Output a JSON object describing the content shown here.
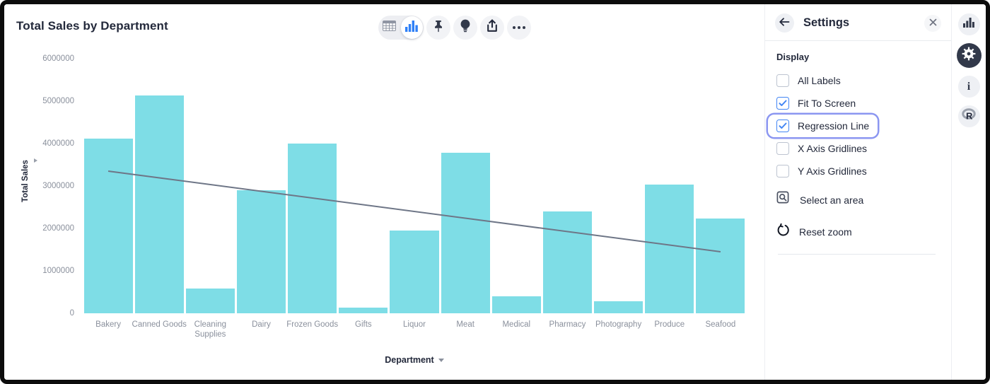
{
  "chart_data": {
    "type": "bar",
    "title": "Total Sales by Department",
    "xlabel": "Department",
    "ylabel": "Total Sales",
    "categories": [
      "Bakery",
      "Canned Goods",
      "Cleaning Supplies",
      "Dairy",
      "Frozen Goods",
      "Gifts",
      "Liquor",
      "Meat",
      "Medical",
      "Pharmacy",
      "Photography",
      "Produce",
      "Seafood"
    ],
    "values": [
      4110000,
      5140000,
      580000,
      2900000,
      4000000,
      140000,
      1950000,
      3780000,
      400000,
      2400000,
      280000,
      3030000,
      2230000
    ],
    "ylim": [
      0,
      6000000
    ],
    "y_ticks": [
      0,
      1000000,
      2000000,
      3000000,
      4000000,
      5000000,
      6000000
    ],
    "grid": "off",
    "legend": "none",
    "bar_color": "#7EDDE6",
    "regression_line": {
      "visible": true,
      "color": "#6E7687",
      "start_value": 3350000,
      "end_value": 1450000
    }
  },
  "toolbar": {
    "icons": [
      "table-icon",
      "bar-chart-icon",
      "pin-icon",
      "lightbulb-icon",
      "share-icon",
      "ellipsis-icon"
    ],
    "selected_view": "bar-chart"
  },
  "settings_panel": {
    "title": "Settings",
    "back_icon": "arrow-left-icon",
    "close_icon": "close-icon",
    "section_label": "Display",
    "checkboxes": [
      {
        "label": "All Labels",
        "checked": false,
        "highlighted": false
      },
      {
        "label": "Fit To Screen",
        "checked": true,
        "highlighted": false
      },
      {
        "label": "Regression Line",
        "checked": true,
        "highlighted": true
      },
      {
        "label": "X Axis Gridlines",
        "checked": false,
        "highlighted": false
      },
      {
        "label": "Y Axis Gridlines",
        "checked": false,
        "highlighted": false
      }
    ],
    "actions": [
      {
        "label": "Select an area",
        "icon": "area-select-icon"
      },
      {
        "label": "Reset zoom",
        "icon": "reset-zoom-icon"
      }
    ]
  },
  "right_rail": {
    "icons": [
      {
        "name": "bar-chart-icon",
        "active": false
      },
      {
        "name": "gear-icon",
        "active": true
      },
      {
        "name": "info-icon",
        "active": false
      },
      {
        "name": "r-logo-icon",
        "active": false
      }
    ]
  },
  "colors": {
    "bar": "#7EDDE6",
    "regression_line": "#6E7687",
    "accent_blue": "#2F80F7",
    "checkbox_blue": "#4285F4",
    "highlight_ring": "#8B96F1",
    "dark_navy": "#32394A"
  }
}
